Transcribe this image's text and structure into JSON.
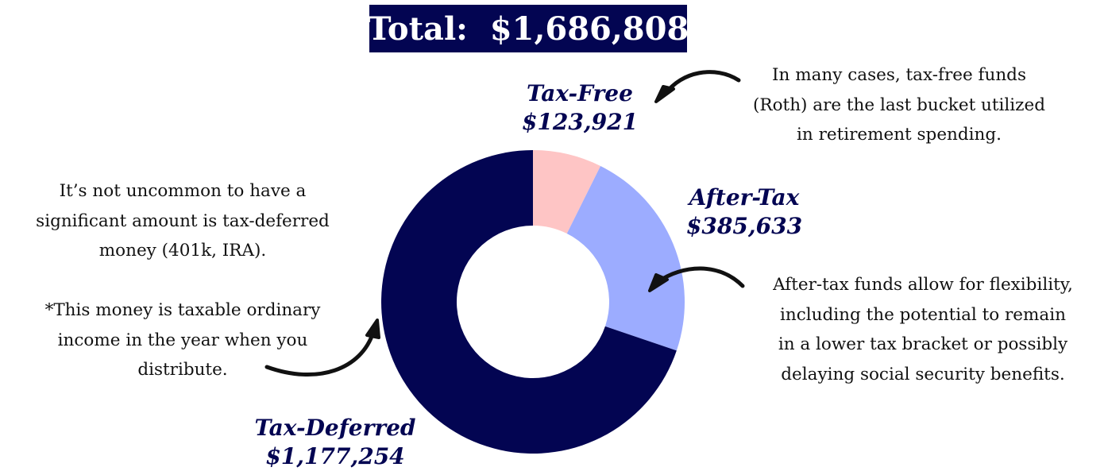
{
  "total_label": "Total:  $1,686,808",
  "chart_data": {
    "type": "pie",
    "title": "Total:  $1,686,808",
    "slices": [
      {
        "name": "Tax-Free",
        "value": 123921,
        "value_label": "$123,921",
        "color": "#fec5c5"
      },
      {
        "name": "After-Tax",
        "value": 385633,
        "value_label": "$385,633",
        "color": "#9cacff"
      },
      {
        "name": "Tax-Deferred",
        "value": 1177254,
        "value_label": "$1,177,254",
        "color": "#030552"
      }
    ]
  },
  "notes": {
    "tax_free": [
      "In many cases, tax-free funds",
      "(Roth) are the last bucket utilized",
      "in retirement spending."
    ],
    "after_tax": [
      "After-tax funds allow for flexibility,",
      "including the potential to remain",
      "in a lower tax bracket or possibly",
      "delaying social security benefits."
    ],
    "tax_deferred": [
      "It’s not uncommon to have a",
      "significant amount is tax-deferred",
      "money (401k, IRA)."
    ],
    "taxable": [
      "*This money is taxable ordinary",
      "income in the year when you",
      "distribute."
    ]
  },
  "colors": {
    "accent": "#030552",
    "arrow": "#111111"
  }
}
